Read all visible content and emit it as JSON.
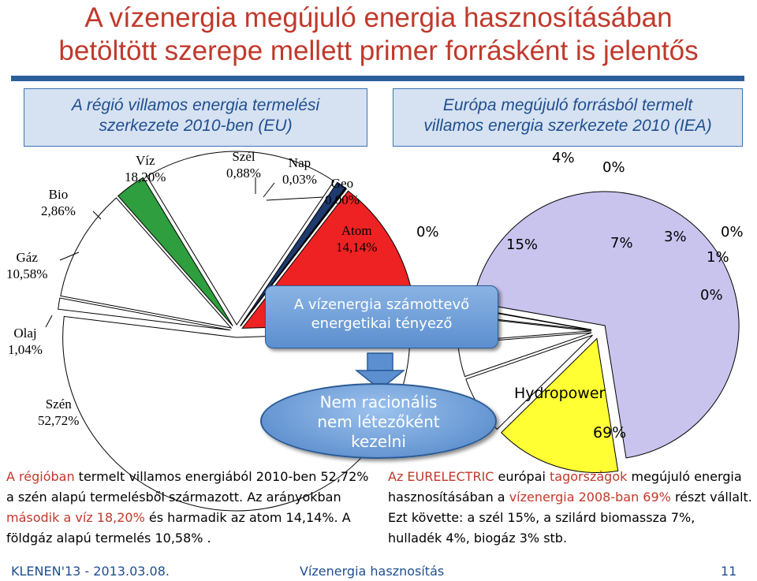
{
  "title": {
    "line1": "A vízenergia megújuló energia hasznosításában",
    "line2": "betöltött szerepe mellett primer forrásként is jelentős"
  },
  "left_header": {
    "line1": "A régió villamos energia termelési",
    "line2": "szerkezete 2010-ben (EU)"
  },
  "right_header": {
    "line1": "Európa megújuló forrásból termelt",
    "line2": "villamos energia szerkezete 2010 (IEA)"
  },
  "chart_data": [
    {
      "type": "pie",
      "slices": [
        {
          "name": "Szén",
          "value": 52.72,
          "label": "52,72%",
          "color": "#ffffff"
        },
        {
          "name": "Olaj",
          "value": 1.04,
          "label": "1,04%",
          "color": "#ffffff"
        },
        {
          "name": "Gáz",
          "value": 10.58,
          "label": "10,58%",
          "color": "#ffffff"
        },
        {
          "name": "Bio",
          "value": 2.86,
          "label": "2,86%",
          "color": "#2e9e3e"
        },
        {
          "name": "Víz",
          "value": 18.2,
          "label": "18,20%",
          "color": "#ffffff"
        },
        {
          "name": "Szél",
          "value": 0.88,
          "label": "0,88%",
          "color": "#1e3a6e"
        },
        {
          "name": "Nap",
          "value": 0.03,
          "label": "0,03%",
          "color": "#ffffff"
        },
        {
          "name": "Geo",
          "value": 0.0,
          "label": "0,00%",
          "color": "#ffffff"
        },
        {
          "name": "Atom",
          "value": 14.14,
          "label": "14,14%",
          "color": "#ee2222"
        }
      ]
    },
    {
      "type": "pie",
      "slices": [
        {
          "name": "Hydropower",
          "value": 69,
          "label": "69%",
          "color": "#c8c4ee"
        },
        {
          "name": "",
          "value": 15,
          "label": "15%",
          "color": "#ffff33"
        },
        {
          "name": "",
          "value": 7,
          "label": "7%",
          "color": "#ffffff"
        },
        {
          "name": "",
          "value": 4,
          "label": "4%",
          "color": "#ffffff"
        },
        {
          "name": "",
          "value": 3,
          "label": "3%",
          "color": "#ffffff"
        },
        {
          "name": "",
          "value": 1,
          "label": "1%",
          "color": "#ffffff"
        },
        {
          "name": "",
          "value": 0,
          "label": "0%",
          "color": "#ffffff"
        }
      ],
      "extra_labels": [
        "0%",
        "0%",
        "0%",
        "0%"
      ]
    }
  ],
  "callout": {
    "line1": "A vízenergia számottevő",
    "line2": "energetikai tényező"
  },
  "ellipse": {
    "line1": "Nem racionális",
    "line2": "nem létezőként",
    "line3": "kezelni"
  },
  "left_text": {
    "a1": "A régióban",
    "a2": " termelt villamos energiából 2010-ben 52,72% a szén alapú termelésből származott. Az arányokban ",
    "a3": "második a víz 18,20%",
    "a4": " és harmadik az atom 14,14%. A földgáz alapú termelés 10,58% ."
  },
  "right_text": {
    "b1": "Az EURELECTRIC",
    "b2": " európai ",
    "b3": "tagországok",
    "b4": " megújuló energia hasznosításában a ",
    "b5": "vízenergia 2008-ban 69%",
    "b6": " részt vállalt. Ezt követte: a szél 15%, a szilárd biomassza 7%, hulladék 4%, biogáz 3% stb."
  },
  "footer": {
    "left": "KLENEN'13 - 2013.03.08.",
    "center": "Vízenergia hasznosítás",
    "page": "11"
  },
  "colors": {
    "title": "#c0392b",
    "accent_blue": "#1f4e8f",
    "atom_red": "#ee2222",
    "bio_green": "#2e9e3e",
    "hydro": "#c8c4ee",
    "wind": "#ffff33"
  }
}
